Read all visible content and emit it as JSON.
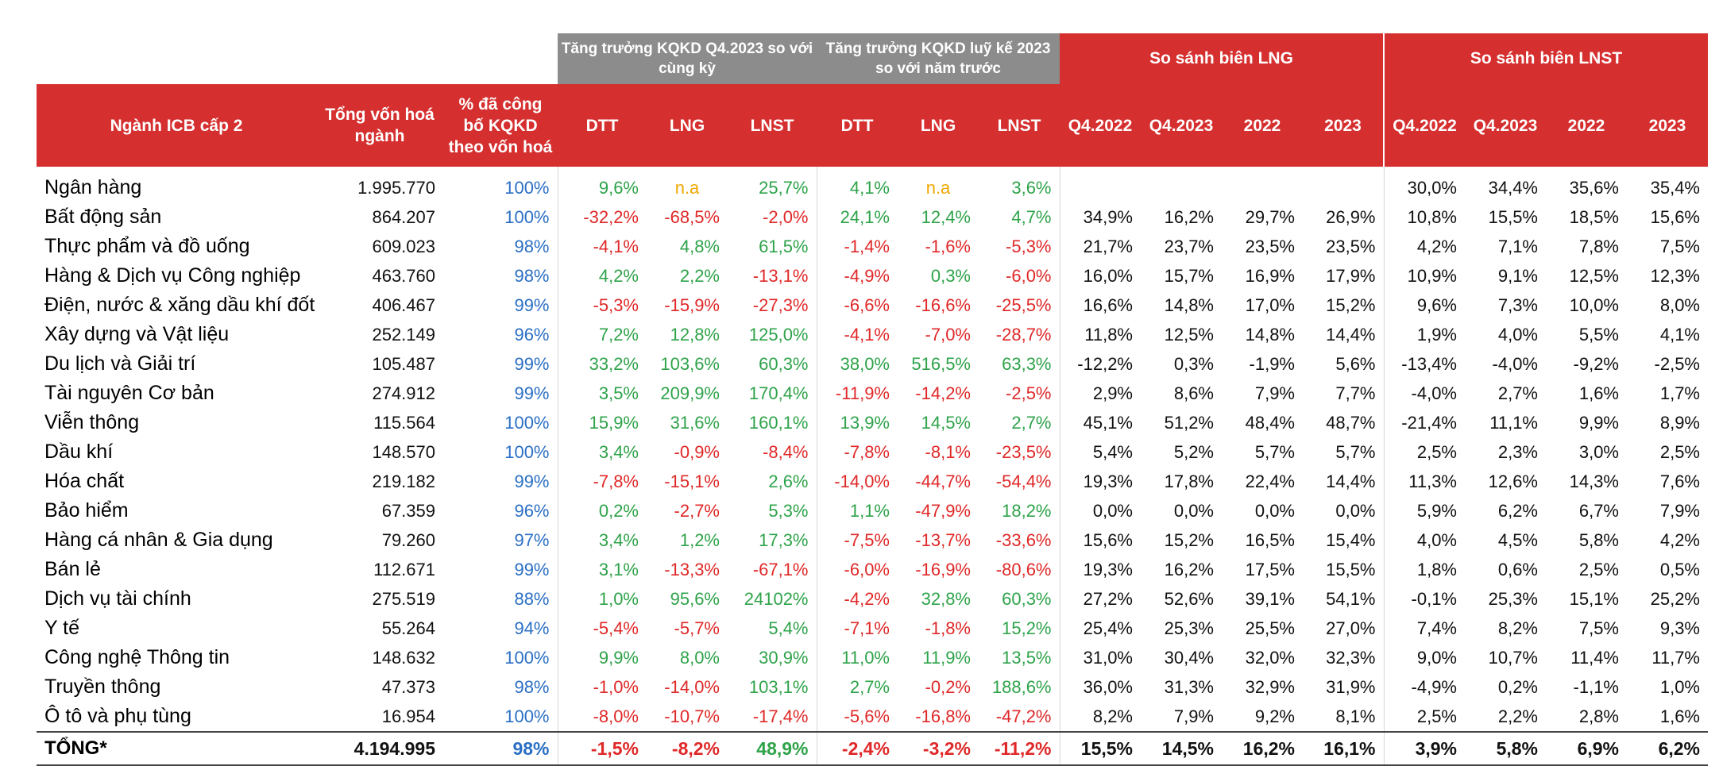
{
  "header": {
    "group_q4": "Tăng trưởng KQKD Q4.2023 so với cùng kỳ",
    "group_ytd": "Tăng trưởng KQKD luỹ kế 2023 so với năm trước",
    "group_lng": "So sánh biên LNG",
    "group_lnst": "So sánh biên LNST",
    "col_name": "Ngành ICB cấp 2",
    "col_cap": "Tổng vốn hoá ngành",
    "col_pct": "% đã công bố KQKD theo vốn hoá",
    "col_dtt": "DTT",
    "col_lng": "LNG",
    "col_lnst": "LNST",
    "col_q42022": "Q4.2022",
    "col_q42023": "Q4.2023",
    "col_2022": "2022",
    "col_2023": "2023"
  },
  "rows": [
    {
      "name": "Ngân hàng",
      "cap": "1.995.770",
      "pct": "100%",
      "q_dtt": "9,6%",
      "q_lng": "n.a",
      "q_lnst": "25,7%",
      "y_dtt": "4,1%",
      "y_lng": "n.a",
      "y_lnst": "3,6%",
      "g1": "",
      "g2": "",
      "g3": "",
      "g4": "",
      "n1": "30,0%",
      "n2": "34,4%",
      "n3": "35,6%",
      "n4": "35,4%"
    },
    {
      "name": "Bất động sản",
      "cap": "864.207",
      "pct": "100%",
      "q_dtt": "-32,2%",
      "q_lng": "-68,5%",
      "q_lnst": "-2,0%",
      "y_dtt": "24,1%",
      "y_lng": "12,4%",
      "y_lnst": "4,7%",
      "g1": "34,9%",
      "g2": "16,2%",
      "g3": "29,7%",
      "g4": "26,9%",
      "n1": "10,8%",
      "n2": "15,5%",
      "n3": "18,5%",
      "n4": "15,6%"
    },
    {
      "name": "Thực phẩm và đồ uống",
      "cap": "609.023",
      "pct": "98%",
      "q_dtt": "-4,1%",
      "q_lng": "4,8%",
      "q_lnst": "61,5%",
      "y_dtt": "-1,4%",
      "y_lng": "-1,6%",
      "y_lnst": "-5,3%",
      "g1": "21,7%",
      "g2": "23,7%",
      "g3": "23,5%",
      "g4": "23,5%",
      "n1": "4,2%",
      "n2": "7,1%",
      "n3": "7,8%",
      "n4": "7,5%"
    },
    {
      "name": "Hàng & Dịch vụ Công nghiệp",
      "cap": "463.760",
      "pct": "98%",
      "q_dtt": "4,2%",
      "q_lng": "2,2%",
      "q_lnst": "-13,1%",
      "y_dtt": "-4,9%",
      "y_lng": "0,3%",
      "y_lnst": "-6,0%",
      "g1": "16,0%",
      "g2": "15,7%",
      "g3": "16,9%",
      "g4": "17,9%",
      "n1": "10,9%",
      "n2": "9,1%",
      "n3": "12,5%",
      "n4": "12,3%"
    },
    {
      "name": "Điện, nước & xăng dầu khí đốt",
      "cap": "406.467",
      "pct": "99%",
      "q_dtt": "-5,3%",
      "q_lng": "-15,9%",
      "q_lnst": "-27,3%",
      "y_dtt": "-6,6%",
      "y_lng": "-16,6%",
      "y_lnst": "-25,5%",
      "g1": "16,6%",
      "g2": "14,8%",
      "g3": "17,0%",
      "g4": "15,2%",
      "n1": "9,6%",
      "n2": "7,3%",
      "n3": "10,0%",
      "n4": "8,0%"
    },
    {
      "name": "Xây dựng và Vật liệu",
      "cap": "252.149",
      "pct": "96%",
      "q_dtt": "7,2%",
      "q_lng": "12,8%",
      "q_lnst": "125,0%",
      "y_dtt": "-4,1%",
      "y_lng": "-7,0%",
      "y_lnst": "-28,7%",
      "g1": "11,8%",
      "g2": "12,5%",
      "g3": "14,8%",
      "g4": "14,4%",
      "n1": "1,9%",
      "n2": "4,0%",
      "n3": "5,5%",
      "n4": "4,1%"
    },
    {
      "name": "Du lịch và Giải trí",
      "cap": "105.487",
      "pct": "99%",
      "q_dtt": "33,2%",
      "q_lng": "103,6%",
      "q_lnst": "60,3%",
      "y_dtt": "38,0%",
      "y_lng": "516,5%",
      "y_lnst": "63,3%",
      "g1": "-12,2%",
      "g2": "0,3%",
      "g3": "-1,9%",
      "g4": "5,6%",
      "n1": "-13,4%",
      "n2": "-4,0%",
      "n3": "-9,2%",
      "n4": "-2,5%"
    },
    {
      "name": "Tài nguyên Cơ bản",
      "cap": "274.912",
      "pct": "99%",
      "q_dtt": "3,5%",
      "q_lng": "209,9%",
      "q_lnst": "170,4%",
      "y_dtt": "-11,9%",
      "y_lng": "-14,2%",
      "y_lnst": "-2,5%",
      "g1": "2,9%",
      "g2": "8,6%",
      "g3": "7,9%",
      "g4": "7,7%",
      "n1": "-4,0%",
      "n2": "2,7%",
      "n3": "1,6%",
      "n4": "1,7%"
    },
    {
      "name": "Viễn thông",
      "cap": "115.564",
      "pct": "100%",
      "q_dtt": "15,9%",
      "q_lng": "31,6%",
      "q_lnst": "160,1%",
      "y_dtt": "13,9%",
      "y_lng": "14,5%",
      "y_lnst": "2,7%",
      "g1": "45,1%",
      "g2": "51,2%",
      "g3": "48,4%",
      "g4": "48,7%",
      "n1": "-21,4%",
      "n2": "11,1%",
      "n3": "9,9%",
      "n4": "8,9%"
    },
    {
      "name": "Dầu khí",
      "cap": "148.570",
      "pct": "100%",
      "q_dtt": "3,4%",
      "q_lng": "-0,9%",
      "q_lnst": "-8,4%",
      "y_dtt": "-7,8%",
      "y_lng": "-8,1%",
      "y_lnst": "-23,5%",
      "g1": "5,4%",
      "g2": "5,2%",
      "g3": "5,7%",
      "g4": "5,7%",
      "n1": "2,5%",
      "n2": "2,3%",
      "n3": "3,0%",
      "n4": "2,5%"
    },
    {
      "name": "Hóa chất",
      "cap": "219.182",
      "pct": "99%",
      "q_dtt": "-7,8%",
      "q_lng": "-15,1%",
      "q_lnst": "2,6%",
      "y_dtt": "-14,0%",
      "y_lng": "-44,7%",
      "y_lnst": "-54,4%",
      "g1": "19,3%",
      "g2": "17,8%",
      "g3": "22,4%",
      "g4": "14,4%",
      "n1": "11,3%",
      "n2": "12,6%",
      "n3": "14,3%",
      "n4": "7,6%"
    },
    {
      "name": "Bảo hiểm",
      "cap": "67.359",
      "pct": "96%",
      "q_dtt": "0,2%",
      "q_lng": "-2,7%",
      "q_lnst": "5,3%",
      "y_dtt": "1,1%",
      "y_lng": "-47,9%",
      "y_lnst": "18,2%",
      "g1": "0,0%",
      "g2": "0,0%",
      "g3": "0,0%",
      "g4": "0,0%",
      "n1": "5,9%",
      "n2": "6,2%",
      "n3": "6,7%",
      "n4": "7,9%"
    },
    {
      "name": "Hàng cá nhân & Gia dụng",
      "cap": "79.260",
      "pct": "97%",
      "q_dtt": "3,4%",
      "q_lng": "1,2%",
      "q_lnst": "17,3%",
      "y_dtt": "-7,5%",
      "y_lng": "-13,7%",
      "y_lnst": "-33,6%",
      "g1": "15,6%",
      "g2": "15,2%",
      "g3": "16,5%",
      "g4": "15,4%",
      "n1": "4,0%",
      "n2": "4,5%",
      "n3": "5,8%",
      "n4": "4,2%"
    },
    {
      "name": "Bán lẻ",
      "cap": "112.671",
      "pct": "99%",
      "q_dtt": "3,1%",
      "q_lng": "-13,3%",
      "q_lnst": "-67,1%",
      "y_dtt": "-6,0%",
      "y_lng": "-16,9%",
      "y_lnst": "-80,6%",
      "g1": "19,3%",
      "g2": "16,2%",
      "g3": "17,5%",
      "g4": "15,5%",
      "n1": "1,8%",
      "n2": "0,6%",
      "n3": "2,5%",
      "n4": "0,5%"
    },
    {
      "name": "Dịch vụ tài chính",
      "cap": "275.519",
      "pct": "88%",
      "q_dtt": "1,0%",
      "q_lng": "95,6%",
      "q_lnst": "24102%",
      "y_dtt": "-4,2%",
      "y_lng": "32,8%",
      "y_lnst": "60,3%",
      "g1": "27,2%",
      "g2": "52,6%",
      "g3": "39,1%",
      "g4": "54,1%",
      "n1": "-0,1%",
      "n2": "25,3%",
      "n3": "15,1%",
      "n4": "25,2%"
    },
    {
      "name": "Y tế",
      "cap": "55.264",
      "pct": "94%",
      "q_dtt": "-5,4%",
      "q_lng": "-5,7%",
      "q_lnst": "5,4%",
      "y_dtt": "-7,1%",
      "y_lng": "-1,8%",
      "y_lnst": "15,2%",
      "g1": "25,4%",
      "g2": "25,3%",
      "g3": "25,5%",
      "g4": "27,0%",
      "n1": "7,4%",
      "n2": "8,2%",
      "n3": "7,5%",
      "n4": "9,3%"
    },
    {
      "name": "Công nghệ Thông tin",
      "cap": "148.632",
      "pct": "100%",
      "q_dtt": "9,9%",
      "q_lng": "8,0%",
      "q_lnst": "30,9%",
      "y_dtt": "11,0%",
      "y_lng": "11,9%",
      "y_lnst": "13,5%",
      "g1": "31,0%",
      "g2": "30,4%",
      "g3": "32,0%",
      "g4": "32,3%",
      "n1": "9,0%",
      "n2": "10,7%",
      "n3": "11,4%",
      "n4": "11,7%"
    },
    {
      "name": "Truyền thông",
      "cap": "47.373",
      "pct": "98%",
      "q_dtt": "-1,0%",
      "q_lng": "-14,0%",
      "q_lnst": "103,1%",
      "y_dtt": "2,7%",
      "y_lng": "-0,2%",
      "y_lnst": "188,6%",
      "g1": "36,0%",
      "g2": "31,3%",
      "g3": "32,9%",
      "g4": "31,9%",
      "n1": "-4,9%",
      "n2": "0,2%",
      "n3": "-1,1%",
      "n4": "1,0%"
    },
    {
      "name": "Ô tô và phụ tùng",
      "cap": "16.954",
      "pct": "100%",
      "q_dtt": "-8,0%",
      "q_lng": "-10,7%",
      "q_lnst": "-17,4%",
      "y_dtt": "-5,6%",
      "y_lng": "-16,8%",
      "y_lnst": "-47,2%",
      "g1": "8,2%",
      "g2": "7,9%",
      "g3": "9,2%",
      "g4": "8,1%",
      "n1": "2,5%",
      "n2": "2,2%",
      "n3": "2,8%",
      "n4": "1,6%"
    }
  ],
  "total": {
    "name": "TỔNG*",
    "cap": "4.194.995",
    "pct": "98%",
    "q_dtt": "-1,5%",
    "q_lng": "-8,2%",
    "q_lnst": "48,9%",
    "y_dtt": "-2,4%",
    "y_lng": "-3,2%",
    "y_lnst": "-11,2%",
    "g1": "15,5%",
    "g2": "14,5%",
    "g3": "16,2%",
    "g4": "16,1%",
    "n1": "3,9%",
    "n2": "5,8%",
    "n3": "6,9%",
    "n4": "6,2%"
  },
  "colors": {
    "header_red": "#d62f2f",
    "header_gray": "#8c8c8c",
    "positive": "#2ea34a",
    "negative": "#e02828",
    "na": "#f0a800",
    "pct": "#2a6fc4"
  }
}
